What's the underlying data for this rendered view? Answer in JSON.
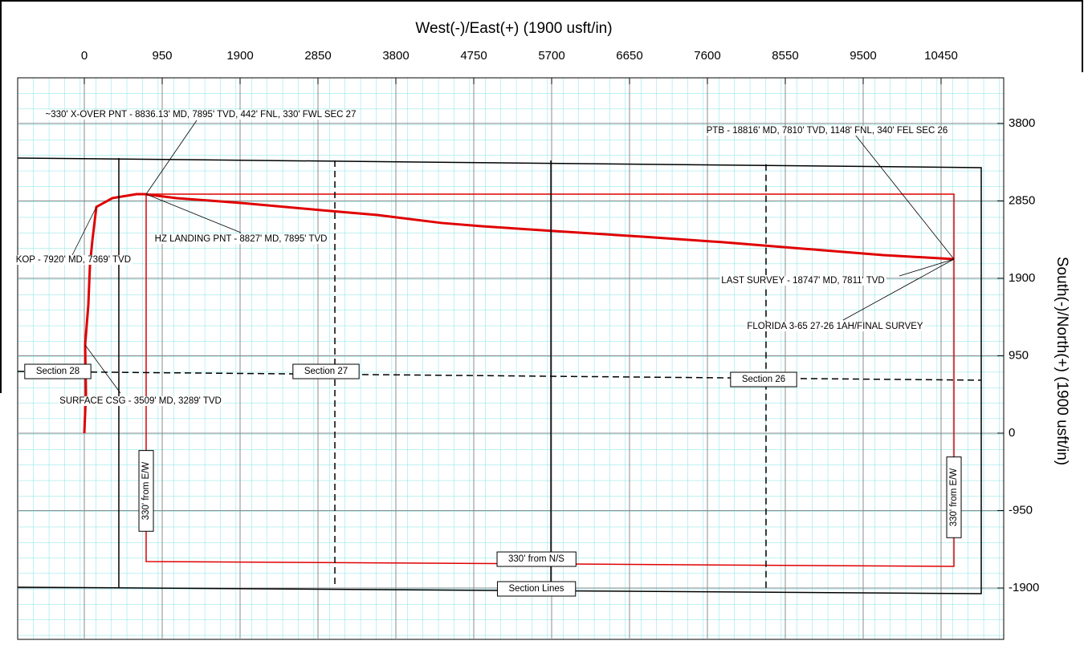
{
  "chart_data": {
    "type": "line",
    "xlabel": "West(-)/East(+) (1900 usft/in)",
    "ylabel": "South(-)/North(+) (1900 usft/in)",
    "xlim": [
      -813,
      11214
    ],
    "ylim": [
      -2530,
      4360
    ],
    "xticks": [
      0,
      950,
      1900,
      2850,
      3800,
      4750,
      5700,
      6650,
      7600,
      8550,
      9500,
      10450
    ],
    "yticks": [
      -1900,
      -950,
      0,
      950,
      1900,
      2850,
      3800
    ],
    "grid": true,
    "series": [
      {
        "color": "#e00000",
        "width": 3,
        "dash": false,
        "x": [
          0,
          20,
          10,
          49,
          69,
          98,
          147,
          343,
          637,
          735,
          1126,
          1910,
          2889,
          3575,
          4358,
          4848,
          5730,
          6807,
          7786,
          8766,
          9745,
          10607
        ],
        "values": [
          0,
          492,
          1083,
          1575,
          2067,
          2362,
          2776,
          2884,
          2933,
          2933,
          2884,
          2825,
          2736,
          2677,
          2579,
          2539,
          2480,
          2411,
          2343,
          2264,
          2185,
          2136
        ]
      },
      {
        "color": "#e00000",
        "width": 1.5,
        "dash": false,
        "x": [
          754,
          10607,
          10607,
          754,
          754
        ],
        "values": [
          2933,
          2933,
          -1634,
          -1575,
          2933
        ]
      },
      {
        "color": "#000000",
        "width": 1.5,
        "dash": false,
        "x": [
          -813,
          10940,
          10940,
          -813
        ],
        "values": [
          3376,
          3258,
          -1969,
          -1890
        ]
      },
      {
        "color": "#000000",
        "width": 1.5,
        "dash": false,
        "x": [
          421,
          421
        ],
        "values": [
          3376,
          -1890
        ]
      },
      {
        "color": "#000000",
        "width": 1.5,
        "dash": false,
        "x": [
          5691,
          5691
        ],
        "values": [
          3346,
          -1930
        ]
      },
      {
        "color": "#000000",
        "width": 1.5,
        "dash": true,
        "x": [
          3056,
          3056
        ],
        "values": [
          3346,
          -1900
        ]
      },
      {
        "color": "#000000",
        "width": 1.5,
        "dash": true,
        "x": [
          8315,
          8315
        ],
        "values": [
          3300,
          -1920
        ]
      },
      {
        "color": "#000000",
        "width": 1.5,
        "dash": true,
        "x": [
          -813,
          10940
        ],
        "values": [
          758,
          650
        ]
      }
    ],
    "annotations": [
      {
        "text": "~330' X-OVER PNT - 8836.13' MD, 7895' TVD, 442' FNL, 330' FWL SEC 27"
      },
      {
        "text": "PTB - 18816' MD, 7810' TVD, 1148' FNL, 340' FEL SEC 26"
      },
      {
        "text": "HZ LANDING PNT - 8827' MD, 7895' TVD"
      },
      {
        "text": "KOP - 7920' MD, 7369' TVD"
      },
      {
        "text": "LAST SURVEY - 18747' MD, 7811' TVD"
      },
      {
        "text": "FLORIDA 3-65 27-26 1AH/FINAL SURVEY",
        "color": "#e00000"
      },
      {
        "text": "SURFACE CSG - 3509' MD, 3289' TVD"
      },
      {
        "text": "Section 28"
      },
      {
        "text": "Section 27"
      },
      {
        "text": "Section 26"
      },
      {
        "text": "Section Lines"
      },
      {
        "text": "330' from N/S",
        "color": "#e00000"
      },
      {
        "text": "330' from E/W",
        "color": "#e00000"
      },
      {
        "text": "330' from E/W",
        "color": "#e00000"
      }
    ]
  }
}
